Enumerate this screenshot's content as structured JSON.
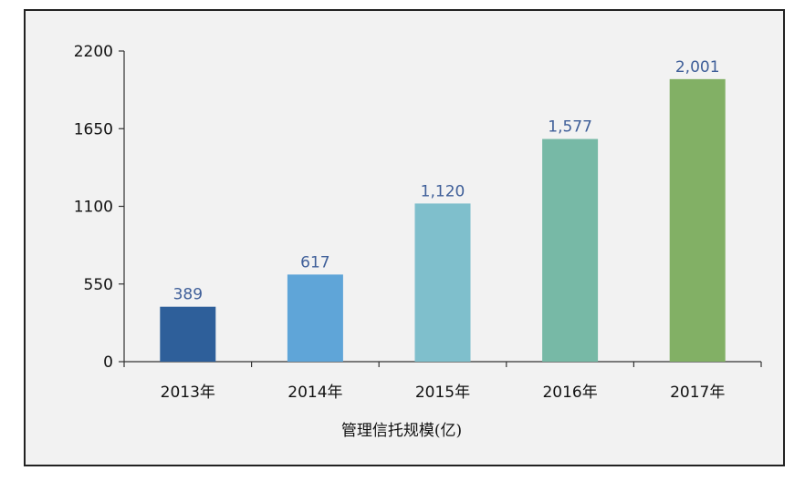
{
  "chart_data": {
    "type": "bar",
    "categories": [
      "2013年",
      "2014年",
      "2015年",
      "2016年",
      "2017年"
    ],
    "values": [
      389,
      617,
      1120,
      1577,
      2001
    ],
    "value_labels": [
      "389",
      "617",
      "1,120",
      "1,577",
      "2,001"
    ],
    "colors": [
      "#2e5f9a",
      "#5fa5d8",
      "#7fbfcc",
      "#77b9a6",
      "#82b065"
    ],
    "xlabel": "管理信托规模(亿)",
    "ylim": [
      0,
      2200
    ],
    "yticks": [
      0,
      550,
      1100,
      1650,
      2200
    ],
    "grid": false,
    "label_color": "#3f5f99"
  }
}
